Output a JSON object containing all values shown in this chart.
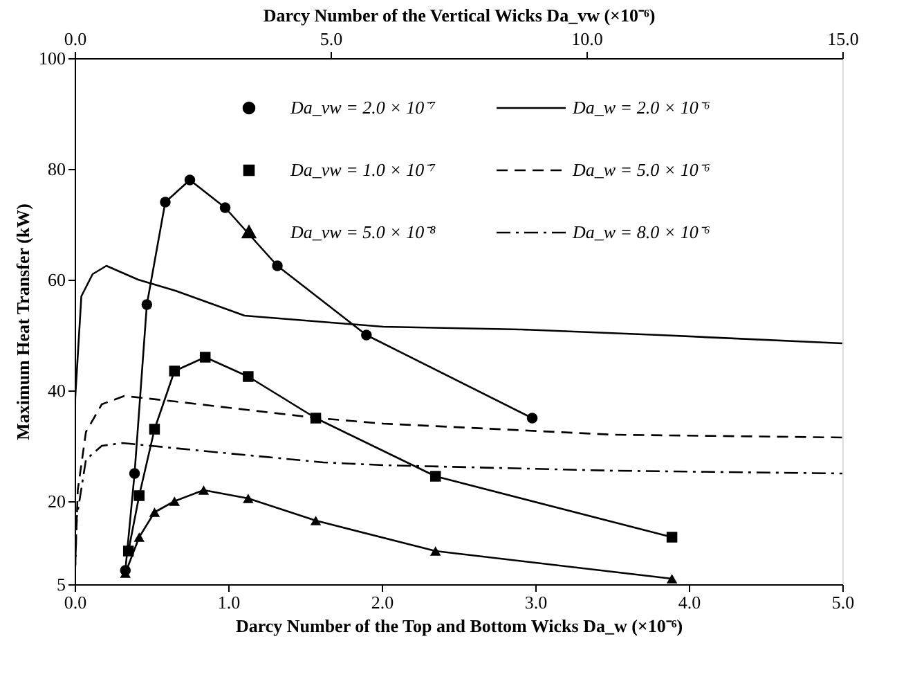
{
  "chart_data": {
    "type": "line",
    "xlabel": "Darcy Number of the Top and Bottom Wicks  Da_w  (×10⁻⁶)",
    "x2label": "Darcy Number of the Vertical Wicks  Da_vw  (×10⁻⁶)",
    "ylabel": "Maximum Heat Transfer    (kW)",
    "xlim": [
      0,
      5
    ],
    "xticks": [
      {
        "value": 0,
        "label": "0.0"
      },
      {
        "value": 1,
        "label": "1.0"
      },
      {
        "value": 2,
        "label": "2.0"
      },
      {
        "value": 3,
        "label": "3.0"
      },
      {
        "value": 4,
        "label": "4.0"
      },
      {
        "value": 5,
        "label": "5.0"
      }
    ],
    "x2lim": [
      0,
      15
    ],
    "x2ticks": [
      {
        "value": 0,
        "label": "0.0"
      },
      {
        "value": 5,
        "label": "5.0"
      },
      {
        "value": 10,
        "label": "10.0"
      },
      {
        "value": 15,
        "label": "15.0"
      }
    ],
    "ylim": [
      5,
      100
    ],
    "yticks": [
      5,
      20,
      40,
      60,
      80,
      100
    ],
    "grid": false,
    "legend": "top",
    "series": [
      {
        "name": "Da_vw = 2.0 × 10⁻⁷",
        "color": "#000000",
        "marker": "circle",
        "line_style": "solid",
        "x": [
          0.33,
          0.39,
          0.47,
          0.59,
          0.75,
          0.98,
          1.32,
          1.9,
          2.98
        ],
        "values": [
          7.5,
          25,
          55.5,
          74,
          78,
          73,
          62.5,
          50,
          35
        ]
      },
      {
        "name": "Da_vw = 1.0 × 10⁻⁷",
        "color": "#000000",
        "marker": "square",
        "line_style": "solid",
        "x": [
          0.35,
          0.42,
          0.52,
          0.65,
          0.85,
          1.13,
          1.57,
          2.35,
          3.89
        ],
        "values": [
          11,
          21,
          33,
          43.5,
          46,
          42.5,
          35,
          24.5,
          13.5
        ]
      },
      {
        "name": "Da_vw = 5.0 × 10⁻⁸",
        "color": "#000000",
        "marker": "triangle",
        "line_style": "solid",
        "x": [
          0.33,
          0.42,
          0.52,
          0.65,
          0.84,
          1.13,
          1.57,
          2.35,
          3.89
        ],
        "values": [
          7,
          13.5,
          18,
          20,
          22,
          20.5,
          16.5,
          11,
          6
        ]
      },
      {
        "name": "Da_w = 2.0 × 10⁻⁶",
        "color": "#000000",
        "axis": "x2",
        "marker": "none",
        "line_style": "solid",
        "x": [
          0,
          0.01,
          0.13,
          0.35,
          0.62,
          1.24,
          1.97,
          3.32,
          6.03,
          8.73,
          11.43,
          15
        ],
        "values": [
          5,
          38.5,
          57,
          61,
          62.5,
          60,
          58,
          53.5,
          51.5,
          51,
          50,
          48.5
        ]
      },
      {
        "name": "Da_w = 5.0 × 10⁻⁶",
        "color": "#000000",
        "axis": "x2",
        "marker": "none",
        "line_style": "dashed",
        "x": [
          0,
          0.06,
          0.22,
          0.53,
          0.97,
          1.97,
          4.76,
          6.03,
          10.54,
          15
        ],
        "values": [
          5,
          22,
          32.5,
          37.5,
          39,
          38,
          35,
          34,
          32,
          31.5
        ]
      },
      {
        "name": "Da_w = 8.0 × 10⁻⁶",
        "color": "#000000",
        "axis": "x2",
        "marker": "none",
        "line_style": "dashdot",
        "x": [
          0,
          0.04,
          0.22,
          0.53,
          0.94,
          2.59,
          4.86,
          6.03,
          10.54,
          15
        ],
        "values": [
          5,
          17,
          27.5,
          30,
          30.5,
          29,
          27,
          26.5,
          25.5,
          25
        ]
      }
    ]
  }
}
